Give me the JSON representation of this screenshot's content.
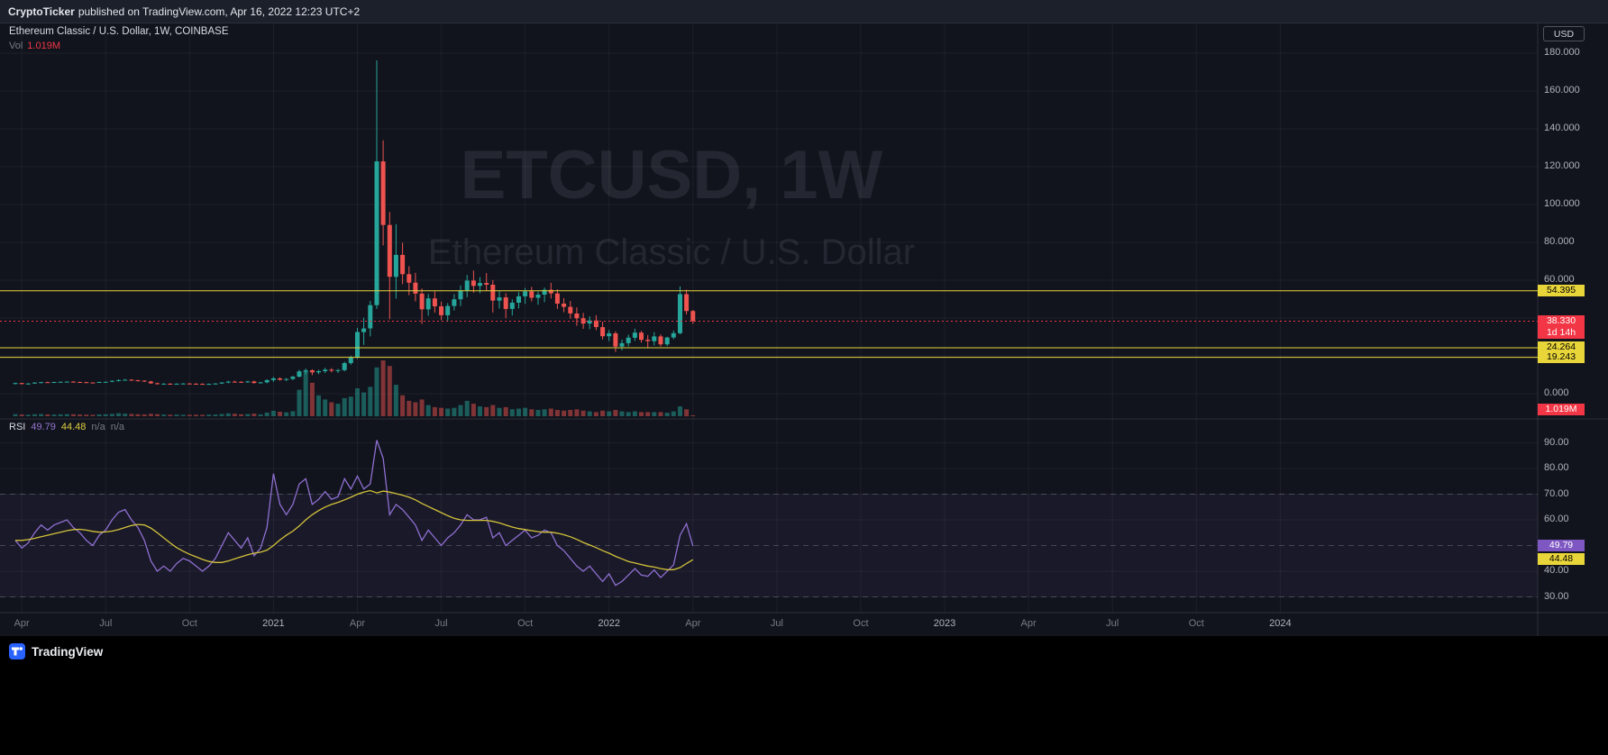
{
  "header": {
    "author": "CryptoTicker",
    "publish_info": "published on TradingView.com, Apr 16, 2022 12:23 UTC+2"
  },
  "legend": {
    "symbol_title": "Ethereum Classic / U.S. Dollar, 1W, COINBASE",
    "vol_label": "Vol",
    "vol_value": "1.019M"
  },
  "watermark": {
    "line1": "ETCUSD, 1W",
    "line2": "Ethereum Classic / U.S. Dollar"
  },
  "rsi_legend": {
    "name": "RSI",
    "value": "49.79",
    "ma": "44.48",
    "na1": "n/a",
    "na2": "n/a"
  },
  "axis": {
    "currency": "USD"
  },
  "footer": {
    "brand": "TradingView"
  },
  "colors": {
    "background": "#11141d",
    "panel": "#1c202b",
    "up": "#26a69a",
    "down": "#ef5350",
    "level_yellow": "#e8d53a",
    "last_red": "#f23645",
    "rsi_purple": "#8f6fd0",
    "rsi_ma_yellow": "#d4c23a",
    "axis_text": "#b0b3bc",
    "muted_text": "#787b86"
  },
  "chart_data": [
    {
      "type": "candlestick",
      "symbol": "ETCUSD",
      "exchange": "COINBASE",
      "interval": "1W",
      "title": "Ethereum Classic / U.S. Dollar, 1W, COINBASE",
      "start_week": "2020-04-06",
      "price_axis": {
        "ticks": [
          {
            "label": "180.000",
            "value": 180
          },
          {
            "label": "160.000",
            "value": 160
          },
          {
            "label": "140.000",
            "value": 140
          },
          {
            "label": "120.000",
            "value": 120
          },
          {
            "label": "100.000",
            "value": 100
          },
          {
            "label": "80.000",
            "value": 80
          },
          {
            "label": "60.000",
            "value": 60
          },
          {
            "label": "0.000",
            "value": 0
          }
        ],
        "grid_values": [
          180,
          160,
          140,
          120,
          100,
          80,
          60,
          40,
          20,
          0
        ]
      },
      "time_ticks": [
        {
          "label": "Apr",
          "week": 1
        },
        {
          "label": "Jul",
          "week": 14
        },
        {
          "label": "Oct",
          "week": 27
        },
        {
          "label": "2021",
          "week": 40
        },
        {
          "label": "Apr",
          "week": 53
        },
        {
          "label": "Jul",
          "week": 66
        },
        {
          "label": "Oct",
          "week": 79
        },
        {
          "label": "2022",
          "week": 92
        },
        {
          "label": "Apr",
          "week": 105
        },
        {
          "label": "Jul",
          "week": 118
        },
        {
          "label": "Oct",
          "week": 131
        },
        {
          "label": "2023",
          "week": 144
        },
        {
          "label": "Apr",
          "week": 157
        },
        {
          "label": "Jul",
          "week": 170
        },
        {
          "label": "Oct",
          "week": 183
        },
        {
          "label": "2024",
          "week": 196
        }
      ],
      "levels": [
        {
          "label": "54.395",
          "value": 54.395
        },
        {
          "label": "24.264",
          "value": 24.264
        },
        {
          "label": "19.243",
          "value": 19.243
        }
      ],
      "last_price": {
        "label": "38.330",
        "value": 38.33,
        "countdown": "1d 14h"
      },
      "volume": {
        "current_label": "1.019M",
        "max_m": 80
      },
      "candles": {
        "open": [
          5.2,
          5.6,
          5.1,
          5.4,
          5.9,
          6.1,
          6.0,
          6.2,
          6.3,
          6.4,
          6.2,
          6.1,
          5.9,
          5.8,
          6.2,
          6.3,
          6.8,
          7.2,
          7.4,
          7.1,
          6.9,
          6.5,
          5.5,
          5.2,
          5.3,
          5.0,
          5.3,
          5.4,
          5.3,
          5.2,
          5.0,
          5.2,
          5.4,
          5.9,
          6.4,
          6.3,
          6.0,
          6.5,
          5.7,
          6.0,
          7.2,
          8.1,
          7.4,
          7.8,
          9.0,
          11.8,
          12.4,
          11.3,
          11.9,
          12.7,
          12.2,
          12.5,
          16.2,
          19.2,
          32.6,
          34.5,
          46.8,
          122.8,
          89.2,
          61.8,
          73.4,
          63.2,
          58.7,
          52.9,
          44.6,
          50.4,
          46.2,
          41.5,
          46.4,
          49.9,
          54.6,
          59.8,
          57.0,
          58.5,
          57.6,
          49.2,
          50.9,
          44.8,
          48.1,
          51.5,
          54.1,
          50.7,
          52.4,
          54.9,
          53.0,
          47.6,
          45.9,
          42.4,
          39.9,
          37.1,
          38.7,
          35.2,
          30.4,
          31.9,
          24.9,
          26.7,
          29.6,
          32.3,
          28.5,
          27.8,
          30.3,
          26.1,
          29.7,
          32.0,
          52.6,
          43.7
        ],
        "high": [
          5.9,
          5.8,
          5.6,
          6.0,
          6.3,
          6.4,
          6.3,
          6.5,
          6.6,
          6.7,
          6.4,
          6.3,
          6.1,
          6.4,
          6.5,
          7.0,
          7.6,
          7.8,
          7.7,
          7.4,
          7.1,
          6.8,
          5.9,
          5.6,
          5.6,
          5.5,
          5.6,
          5.7,
          5.6,
          5.5,
          5.4,
          5.6,
          6.2,
          6.8,
          6.9,
          6.6,
          6.8,
          6.9,
          6.3,
          7.6,
          8.9,
          8.6,
          8.2,
          9.5,
          12.6,
          13.4,
          12.9,
          12.6,
          13.7,
          13.5,
          13.1,
          16.9,
          20.1,
          34.8,
          40.2,
          49.1,
          176.2,
          133.9,
          96.1,
          89.6,
          79.8,
          67.4,
          63.9,
          55.6,
          52.7,
          54.1,
          48.6,
          47.9,
          52.6,
          57.2,
          62.8,
          65.1,
          61.6,
          63.8,
          60.1,
          54.5,
          53.1,
          49.9,
          53.7,
          55.9,
          56.5,
          54.0,
          56.1,
          58.6,
          55.2,
          50.5,
          49.0,
          45.6,
          42.7,
          40.9,
          41.5,
          38.1,
          33.6,
          33.0,
          28.6,
          31.2,
          34.4,
          33.2,
          31.0,
          32.6,
          31.4,
          30.1,
          33.4,
          56.7,
          55.0,
          44.3
        ],
        "low": [
          4.9,
          4.9,
          4.8,
          5.2,
          5.5,
          5.7,
          5.6,
          5.9,
          6.0,
          5.9,
          5.8,
          5.6,
          5.5,
          5.7,
          5.9,
          6.1,
          6.5,
          6.9,
          6.8,
          6.5,
          6.2,
          5.2,
          4.8,
          4.9,
          4.7,
          4.8,
          5.0,
          5.1,
          4.9,
          4.8,
          4.7,
          4.9,
          5.2,
          5.5,
          5.8,
          5.7,
          5.8,
          5.3,
          5.4,
          5.5,
          6.3,
          6.9,
          6.6,
          7.2,
          8.6,
          10.2,
          9.8,
          10.4,
          10.9,
          11.3,
          11.0,
          11.8,
          15.3,
          18.4,
          25.8,
          30.3,
          44.9,
          78.4,
          39.4,
          50.3,
          57.9,
          52.1,
          48.8,
          36.9,
          41.3,
          42.8,
          38.9,
          38.5,
          44.0,
          46.3,
          51.0,
          53.4,
          53.1,
          54.3,
          42.8,
          45.0,
          39.9,
          41.4,
          45.1,
          47.5,
          48.8,
          47.0,
          48.4,
          50.3,
          44.8,
          43.0,
          39.6,
          35.9,
          34.3,
          34.1,
          33.6,
          28.7,
          27.8,
          22.1,
          22.9,
          25.0,
          27.9,
          27.0,
          24.0,
          25.5,
          25.0,
          25.2,
          28.8,
          31.4,
          41.9,
          36.9
        ],
        "close": [
          5.6,
          5.1,
          5.4,
          5.9,
          6.1,
          6.0,
          6.2,
          6.3,
          6.4,
          6.2,
          6.1,
          5.9,
          5.8,
          6.2,
          6.3,
          6.8,
          7.2,
          7.4,
          7.1,
          6.9,
          6.5,
          5.5,
          5.2,
          5.3,
          5.0,
          5.3,
          5.4,
          5.3,
          5.2,
          5.0,
          5.2,
          5.4,
          5.9,
          6.4,
          6.3,
          6.0,
          6.5,
          5.7,
          6.0,
          7.2,
          8.1,
          7.4,
          7.8,
          9.0,
          11.8,
          12.4,
          11.3,
          11.9,
          12.7,
          12.2,
          12.5,
          16.2,
          19.2,
          32.6,
          34.5,
          46.8,
          122.8,
          89.2,
          61.8,
          73.4,
          63.2,
          58.7,
          52.9,
          44.6,
          50.4,
          46.2,
          41.5,
          46.4,
          49.9,
          54.6,
          59.8,
          57.0,
          58.5,
          57.6,
          49.2,
          50.9,
          44.8,
          48.1,
          51.5,
          54.1,
          50.7,
          52.4,
          54.9,
          53.0,
          47.6,
          45.9,
          42.4,
          39.9,
          37.1,
          38.7,
          35.2,
          30.4,
          31.9,
          24.9,
          26.7,
          29.6,
          32.3,
          28.5,
          27.8,
          30.3,
          26.1,
          29.7,
          32.0,
          52.6,
          43.7,
          38.33
        ],
        "volume_m": [
          3.0,
          2.5,
          2.2,
          2.8,
          3.1,
          2.6,
          2.4,
          2.7,
          3.0,
          2.8,
          2.5,
          2.3,
          2.1,
          2.6,
          2.8,
          3.4,
          4.2,
          3.8,
          3.2,
          2.9,
          2.6,
          3.5,
          3.0,
          2.4,
          2.2,
          2.3,
          2.1,
          2.0,
          2.2,
          2.1,
          2.3,
          2.5,
          3.2,
          4.1,
          3.6,
          2.9,
          3.1,
          3.8,
          2.7,
          5.2,
          7.8,
          6.4,
          5.6,
          7.2,
          38,
          65,
          48,
          30,
          24,
          20,
          18,
          26,
          28,
          40,
          34,
          42,
          70,
          80,
          72,
          45,
          30,
          22,
          20,
          24,
          16,
          13,
          12,
          11,
          12,
          16,
          22,
          18,
          14,
          13,
          16,
          12,
          13,
          10,
          11,
          12,
          10,
          9,
          10,
          11,
          9,
          8,
          9,
          10,
          8,
          7,
          6,
          8,
          7,
          9,
          7,
          6,
          7,
          6,
          6,
          6,
          6,
          5,
          7,
          14,
          10,
          1.019
        ]
      }
    },
    {
      "type": "line",
      "title": "RSI with MA",
      "ticks": [
        {
          "label": "90.00",
          "value": 90
        },
        {
          "label": "80.00",
          "value": 80
        },
        {
          "label": "70.00",
          "value": 70
        },
        {
          "label": "60.00",
          "value": 60
        },
        {
          "label": "40.00",
          "value": 40
        },
        {
          "label": "30.00",
          "value": 30
        }
      ],
      "bands": [
        70,
        50,
        30
      ],
      "series": [
        {
          "name": "RSI",
          "color": "#8f6fd0",
          "last_label": "49.79",
          "values": [
            52,
            49,
            51,
            55,
            58,
            56,
            58,
            59,
            60,
            57,
            55,
            52,
            50,
            54,
            56,
            60,
            63,
            64,
            60,
            57,
            52,
            44,
            40,
            42,
            40,
            43,
            45,
            44,
            42,
            40,
            42,
            45,
            50,
            55,
            52,
            49,
            53,
            46,
            49,
            57,
            78,
            66,
            62,
            66,
            74,
            76,
            66,
            68,
            71,
            68,
            69,
            76,
            72,
            77,
            72,
            74,
            91,
            84,
            62,
            66,
            64,
            61,
            58,
            52,
            56,
            53,
            50,
            53,
            55,
            58,
            62,
            60,
            60,
            61,
            53,
            55,
            50,
            52,
            54,
            56,
            53,
            54,
            56,
            55,
            50,
            48,
            45,
            42,
            40,
            42,
            39,
            36,
            39,
            34.5,
            36,
            38.5,
            41,
            38.5,
            38,
            40.5,
            37.5,
            40,
            42.5,
            54,
            58.5,
            49.79
          ]
        },
        {
          "name": "RSI MA",
          "color": "#d4c23a",
          "last_label": "44.48",
          "values": [
            52,
            52,
            52.3,
            52.8,
            53.4,
            54,
            54.6,
            55.2,
            55.8,
            56.2,
            56.3,
            56,
            55.5,
            55.2,
            55.3,
            55.6,
            56.2,
            57,
            57.8,
            58.2,
            58,
            56.8,
            55,
            53,
            51,
            49.2,
            47.8,
            46.6,
            45.6,
            44.6,
            43.8,
            43.4,
            43.4,
            44,
            44.8,
            45.6,
            46.4,
            47,
            47.4,
            48.2,
            50,
            52.2,
            54,
            55.6,
            57.6,
            60,
            62,
            63.6,
            65,
            66,
            66.8,
            67.8,
            68.8,
            70,
            70.8,
            71.4,
            70.5,
            71.2,
            70.8,
            70.2,
            69.6,
            68.8,
            67.8,
            66.4,
            65.2,
            64,
            62.8,
            61.6,
            60.6,
            60,
            59.8,
            59.8,
            59.8,
            59.8,
            59.4,
            58.8,
            58,
            57.2,
            56.6,
            56.2,
            55.8,
            55.4,
            55.2,
            55.2,
            54.8,
            54.2,
            53.4,
            52.4,
            51.2,
            50.2,
            49.2,
            48,
            47,
            45.8,
            44.8,
            43.8,
            43.2,
            42.6,
            42,
            41.6,
            41,
            40.6,
            40.6,
            41.4,
            43,
            44.48
          ]
        }
      ]
    }
  ]
}
